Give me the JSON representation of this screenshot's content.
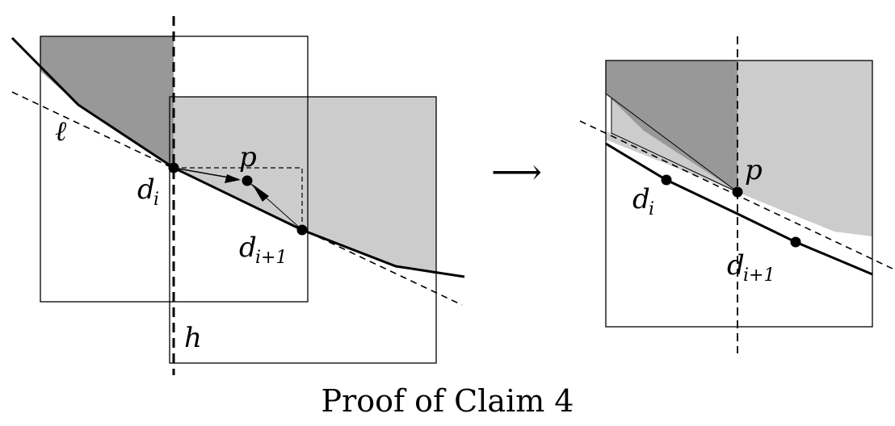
{
  "diagram": {
    "left": {
      "labels": {
        "ell": "ℓ",
        "p": "p",
        "d_i_base": "d",
        "d_i_sub": "i",
        "d_ip1_base": "d",
        "d_ip1_sub": "i+1",
        "h": "h"
      }
    },
    "transition_arrow": "⟶",
    "right": {
      "labels": {
        "p": "p",
        "d_i_base": "d",
        "d_i_sub": "i",
        "d_ip1_base": "d",
        "d_ip1_sub": "i+1"
      }
    },
    "caption": "Proof of Claim 4",
    "colors": {
      "dark_region": "#989898",
      "light_region": "#cccccc",
      "stroke": "#000000",
      "background": "#ffffff"
    }
  }
}
